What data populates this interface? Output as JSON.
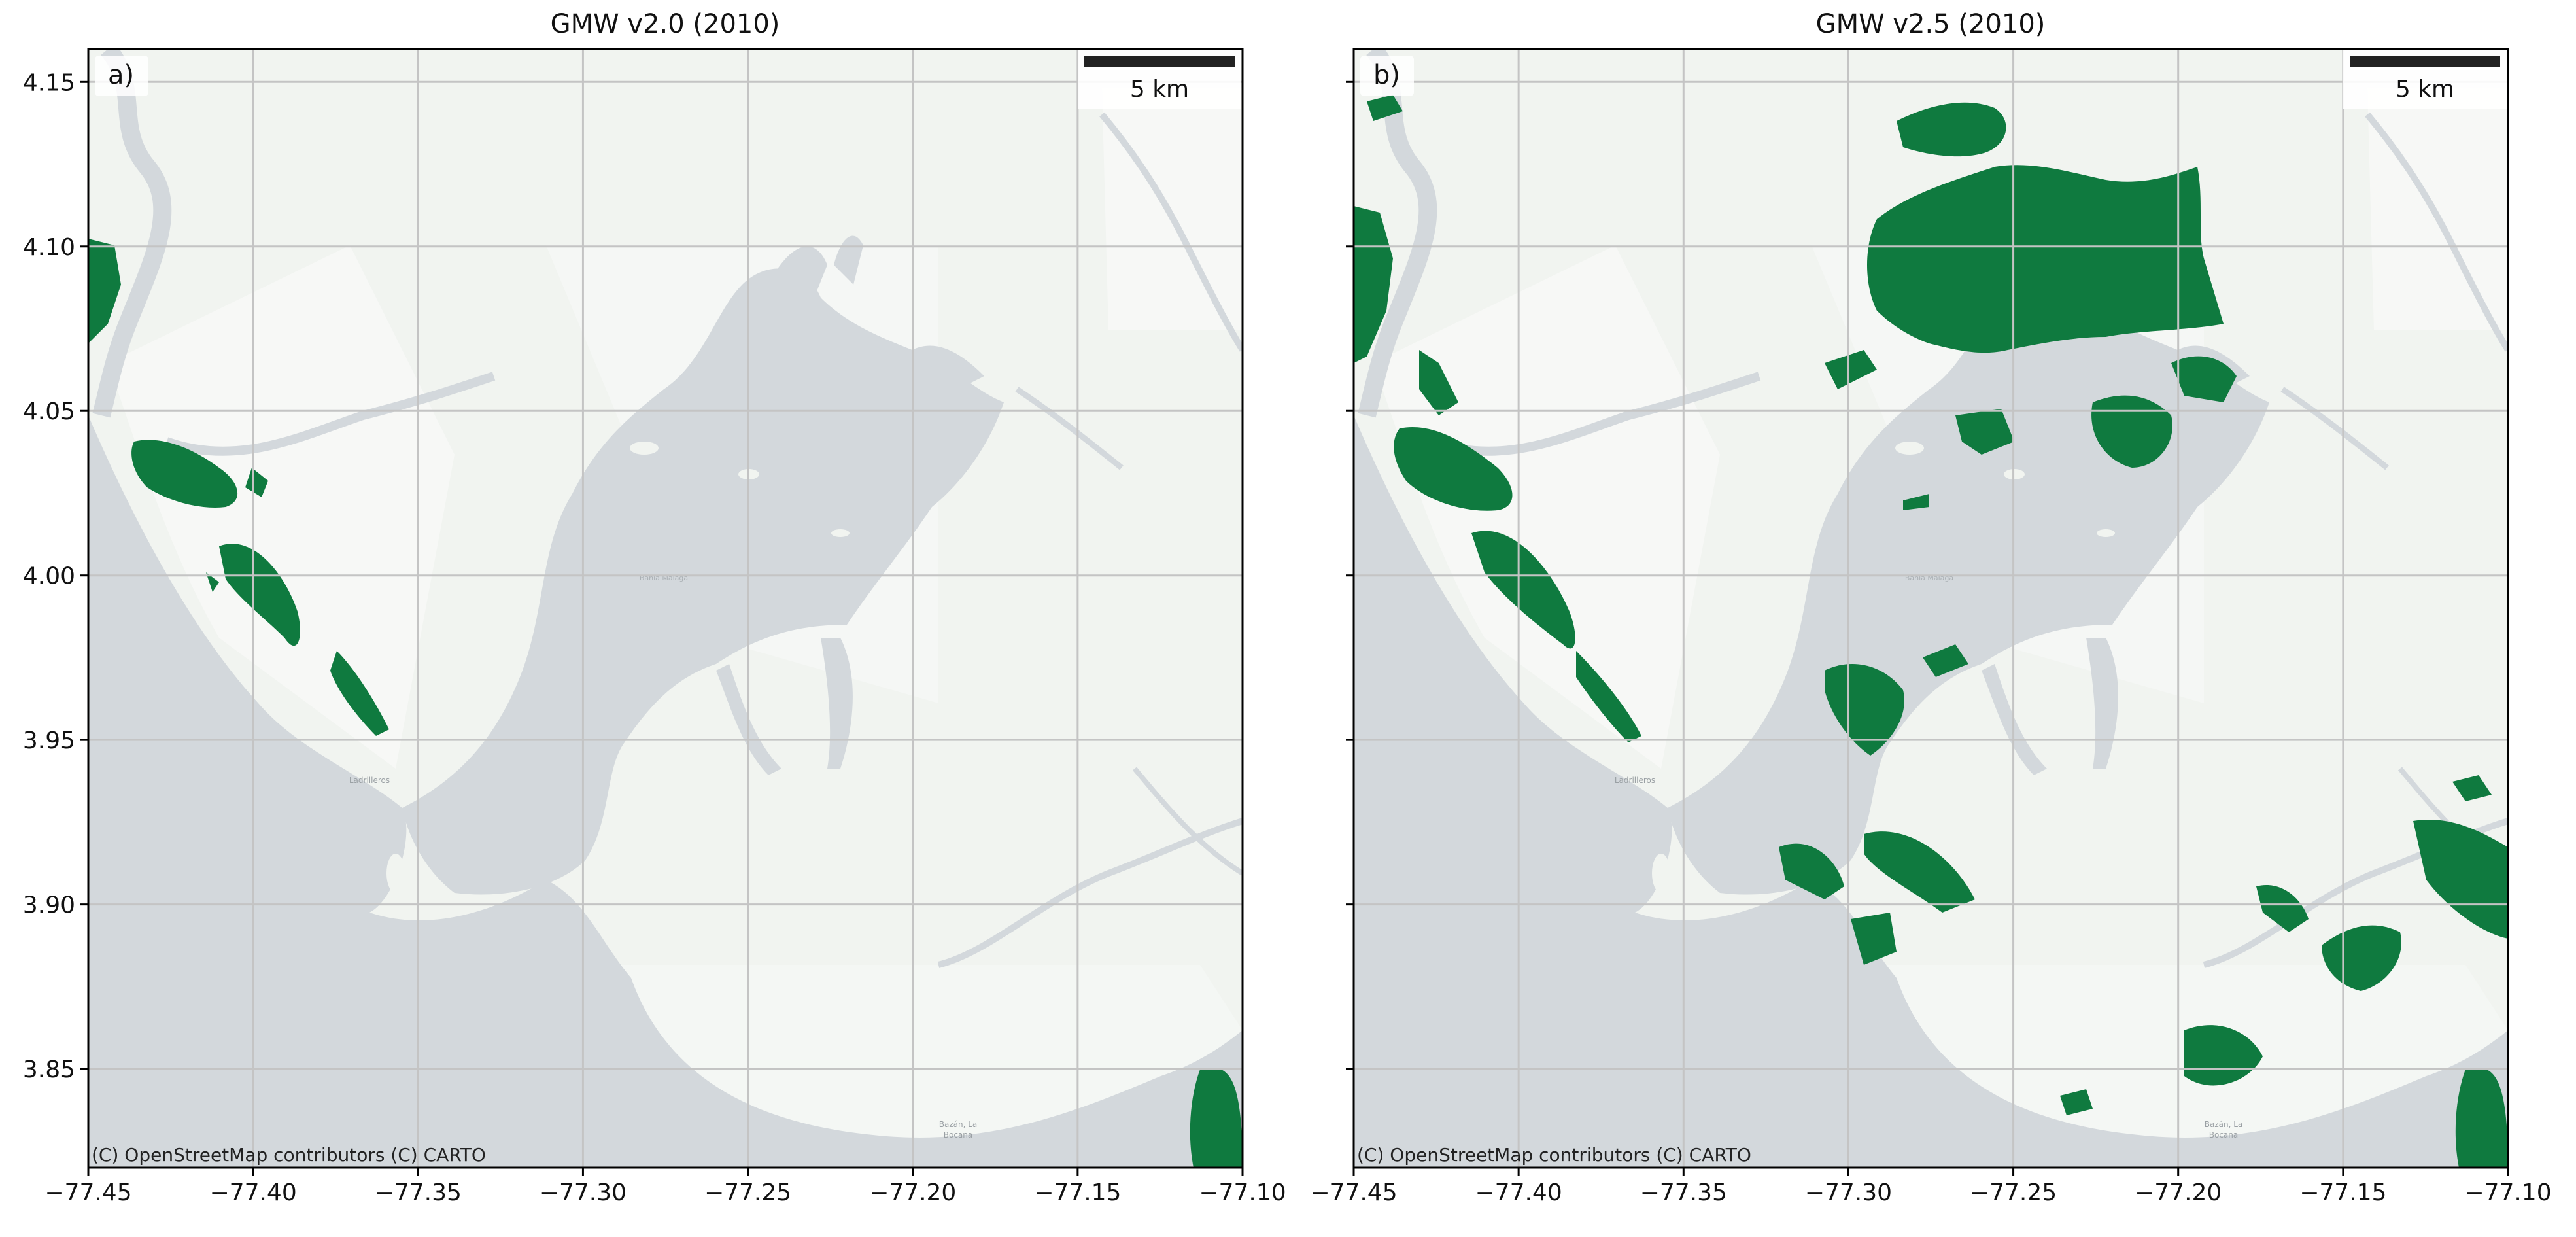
{
  "panels": [
    {
      "id": "left",
      "title": "GMW v2.0 (2010)",
      "panel_label": "a)",
      "scale_bar_label": "5 km",
      "attribution": "(C) OpenStreetMap contributors (C) CARTO",
      "map_labels": {
        "place_1": "Bahia Malaga",
        "place_2": "Ladrilleros",
        "place_3a": "Bazán, La",
        "place_3b": "Bocana"
      }
    },
    {
      "id": "right",
      "title": "GMW v2.5 (2010)",
      "panel_label": "b)",
      "scale_bar_label": "5 km",
      "attribution": "(C) OpenStreetMap contributors (C) CARTO",
      "map_labels": {
        "place_1": "Bahia Malaga",
        "place_2": "Ladrilleros",
        "place_3a": "Bazán, La",
        "place_3b": "Bocana"
      }
    }
  ],
  "axes": {
    "x_ticks": [
      "−77.45",
      "−77.40",
      "−77.35",
      "−77.30",
      "−77.25",
      "−77.20",
      "−77.15",
      "−77.10"
    ],
    "y_ticks": [
      "4.15",
      "4.10",
      "4.05",
      "4.00",
      "3.95",
      "3.90",
      "3.85"
    ],
    "x_tick_values": [
      -77.45,
      -77.4,
      -77.35,
      -77.3,
      -77.25,
      -77.2,
      -77.15,
      -77.1
    ],
    "y_tick_values": [
      4.15,
      4.1,
      4.05,
      4.0,
      3.95,
      3.9,
      3.85
    ],
    "xlim": [
      -77.45,
      -77.1
    ],
    "ylim": [
      3.82,
      4.16
    ],
    "grid": true
  },
  "colors": {
    "water": "#d3d8dc",
    "land": "#f1f4f0",
    "land_light": "#f7f8f6",
    "mangrove": "#0f7a3f",
    "grid": "#c4c4c4",
    "frame": "#000000"
  }
}
